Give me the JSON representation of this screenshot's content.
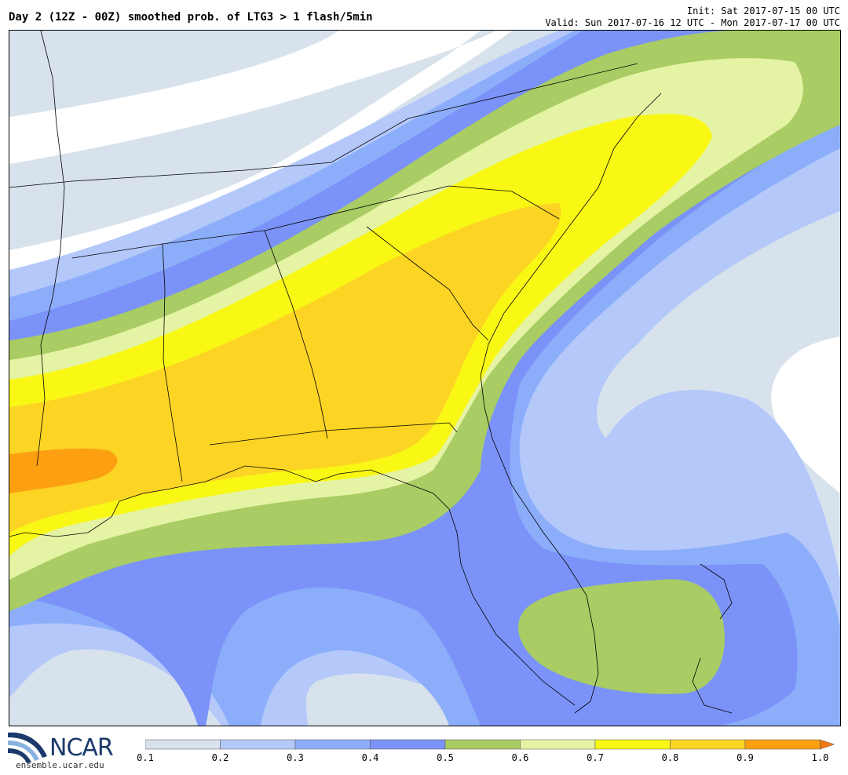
{
  "header": {
    "title": "Day 2 (12Z - 00Z) smoothed prob. of LTG3 > 1 flash/5min",
    "init": "Init: Sat 2017-07-15 00 UTC",
    "valid": "Valid: Sun 2017-07-16 12 UTC - Mon 2017-07-17 00 UTC"
  },
  "logo": {
    "word": "NCAR",
    "url": "ensemble.ucar.edu"
  },
  "colorbar": {
    "ticks": [
      "0.1",
      "0.2",
      "0.3",
      "0.4",
      "0.5",
      "0.6",
      "0.7",
      "0.8",
      "0.9",
      "1.0"
    ],
    "colors": [
      "#d7e2ec",
      "#b4c8fa",
      "#8caefa",
      "#7b93f8",
      "#a9cc64",
      "#e5f3a4",
      "#f9f815",
      "#fcd424",
      "#fca012",
      "#f07a10"
    ]
  },
  "map": {
    "fill_colors": {
      "none": "#ffffff",
      "p10": "#d7e2ec",
      "p20": "#b4c8fa",
      "p30": "#8caefa",
      "p40": "#7b93f8",
      "p50": "#a9cc64",
      "p60": "#e5f3a4",
      "p70": "#f9f815",
      "p80": "#fcd424",
      "p90": "#fca012"
    }
  }
}
